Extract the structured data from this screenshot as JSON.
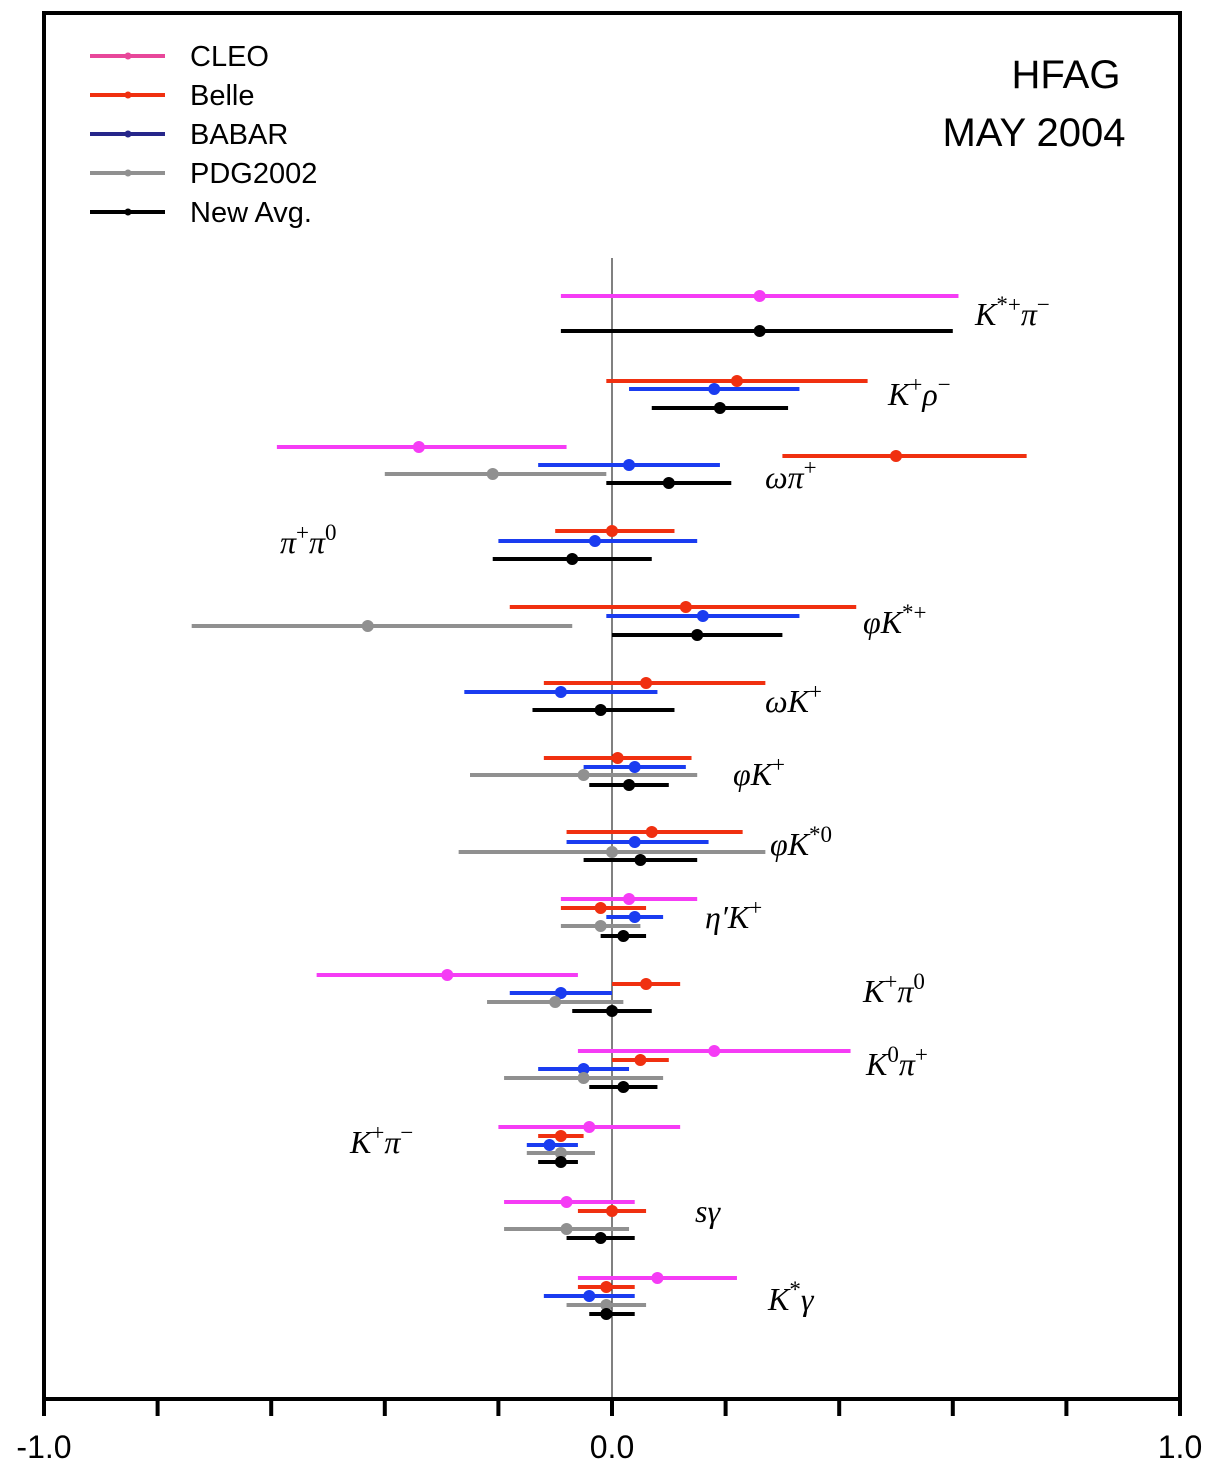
{
  "chart_data": {
    "type": "errorbar",
    "title": "",
    "watermark": [
      "HFAG",
      "MAY 2004"
    ],
    "xlabel": "",
    "ylabel": "",
    "xlim": [
      -1.0,
      1.0
    ],
    "x_tick_labels": [
      "-1.0",
      "0.0",
      "1.0"
    ],
    "colors": {
      "CLEO": "#f53cf5",
      "Belle": "#f03010",
      "BABAR": "#1a3cf0",
      "PDG2002": "#909090",
      "New Avg.": "#000000"
    },
    "legend": {
      "placement": "top-left",
      "entries": [
        {
          "name": "CLEO",
          "color": "#e8479a"
        },
        {
          "name": "Belle",
          "color": "#f03010"
        },
        {
          "name": "BABAR",
          "color": "#26268a"
        },
        {
          "name": "PDG2002",
          "color": "#909090"
        },
        {
          "name": "New Avg.",
          "color": "#000000"
        }
      ]
    },
    "groups": [
      {
        "label_main": "K",
        "label_sup": "*+",
        "label_main2": "π",
        "label_sup2": "−",
        "measurements": [
          {
            "experiment": "CLEO",
            "value": 0.26,
            "low": -0.09,
            "high": 0.61
          },
          {
            "experiment": "New Avg.",
            "value": 0.26,
            "low": -0.09,
            "high": 0.6
          }
        ]
      },
      {
        "label_main": "K",
        "label_sup": "+",
        "label_main2": "ρ",
        "label_sup2": "−",
        "measurements": [
          {
            "experiment": "Belle",
            "value": 0.22,
            "low": -0.01,
            "high": 0.45
          },
          {
            "experiment": "BABAR",
            "value": 0.18,
            "low": 0.03,
            "high": 0.33
          },
          {
            "experiment": "New Avg.",
            "value": 0.19,
            "low": 0.07,
            "high": 0.31
          }
        ]
      },
      {
        "label_main": "ωπ",
        "label_sup": "+",
        "label_main2": "",
        "label_sup2": "",
        "measurements": [
          {
            "experiment": "CLEO",
            "value": -0.34,
            "low": -0.59,
            "high": -0.08
          },
          {
            "experiment": "Belle",
            "value": 0.5,
            "low": 0.3,
            "high": 0.73
          },
          {
            "experiment": "BABAR",
            "value": 0.03,
            "low": -0.13,
            "high": 0.19
          },
          {
            "experiment": "PDG2002",
            "value": -0.21,
            "low": -0.4,
            "high": -0.01
          },
          {
            "experiment": "New Avg.",
            "value": 0.1,
            "low": -0.01,
            "high": 0.21
          }
        ]
      },
      {
        "label_main": "π",
        "label_sup": "+",
        "label_main2": "π",
        "label_sup2": "0",
        "measurements": [
          {
            "experiment": "Belle",
            "value": 0.0,
            "low": -0.1,
            "high": 0.11
          },
          {
            "experiment": "BABAR",
            "value": -0.03,
            "low": -0.2,
            "high": 0.15
          },
          {
            "experiment": "New Avg.",
            "value": -0.07,
            "low": -0.21,
            "high": 0.07
          }
        ]
      },
      {
        "label_main": "φK",
        "label_sup": "*+",
        "label_main2": "",
        "label_sup2": "",
        "measurements": [
          {
            "experiment": "Belle",
            "value": 0.13,
            "low": -0.18,
            "high": 0.43
          },
          {
            "experiment": "BABAR",
            "value": 0.16,
            "low": -0.01,
            "high": 0.33
          },
          {
            "experiment": "PDG2002",
            "value": -0.43,
            "low": -0.74,
            "high": -0.07
          },
          {
            "experiment": "New Avg.",
            "value": 0.15,
            "low": 0.0,
            "high": 0.3
          }
        ]
      },
      {
        "label_main": "ωK",
        "label_sup": "+",
        "label_main2": "",
        "label_sup2": "",
        "measurements": [
          {
            "experiment": "Belle",
            "value": 0.06,
            "low": -0.12,
            "high": 0.27
          },
          {
            "experiment": "BABAR",
            "value": -0.09,
            "low": -0.26,
            "high": 0.08
          },
          {
            "experiment": "New Avg.",
            "value": -0.02,
            "low": -0.14,
            "high": 0.11
          }
        ]
      },
      {
        "label_main": "φK",
        "label_sup": "+",
        "label_main2": "",
        "label_sup2": "",
        "measurements": [
          {
            "experiment": "Belle",
            "value": 0.01,
            "low": -0.12,
            "high": 0.14
          },
          {
            "experiment": "BABAR",
            "value": 0.04,
            "low": -0.05,
            "high": 0.13
          },
          {
            "experiment": "PDG2002",
            "value": -0.05,
            "low": -0.25,
            "high": 0.15
          },
          {
            "experiment": "New Avg.",
            "value": 0.03,
            "low": -0.04,
            "high": 0.1
          }
        ]
      },
      {
        "label_main": "φK",
        "label_sup": "*0",
        "label_main2": "",
        "label_sup2": "",
        "measurements": [
          {
            "experiment": "Belle",
            "value": 0.07,
            "low": -0.08,
            "high": 0.23
          },
          {
            "experiment": "BABAR",
            "value": 0.04,
            "low": -0.08,
            "high": 0.17
          },
          {
            "experiment": "PDG2002",
            "value": 0.0,
            "low": -0.27,
            "high": 0.27
          },
          {
            "experiment": "New Avg.",
            "value": 0.05,
            "low": -0.05,
            "high": 0.15
          }
        ]
      },
      {
        "label_main": "η′K",
        "label_sup": "+",
        "label_main2": "",
        "label_sup2": "",
        "measurements": [
          {
            "experiment": "CLEO",
            "value": 0.03,
            "low": -0.09,
            "high": 0.15
          },
          {
            "experiment": "Belle",
            "value": -0.02,
            "low": -0.09,
            "high": 0.06
          },
          {
            "experiment": "BABAR",
            "value": 0.04,
            "low": -0.01,
            "high": 0.09
          },
          {
            "experiment": "PDG2002",
            "value": -0.02,
            "low": -0.09,
            "high": 0.05
          },
          {
            "experiment": "New Avg.",
            "value": 0.02,
            "low": -0.02,
            "high": 0.06
          }
        ]
      },
      {
        "label_main": "K",
        "label_sup": "+",
        "label_main2": "π",
        "label_sup2": "0",
        "measurements": [
          {
            "experiment": "CLEO",
            "value": -0.29,
            "low": -0.52,
            "high": -0.06
          },
          {
            "experiment": "Belle",
            "value": 0.06,
            "low": 0.0,
            "high": 0.12
          },
          {
            "experiment": "BABAR",
            "value": -0.09,
            "low": -0.18,
            "high": 0.0
          },
          {
            "experiment": "PDG2002",
            "value": -0.1,
            "low": -0.22,
            "high": 0.02
          },
          {
            "experiment": "New Avg.",
            "value": 0.0,
            "low": -0.07,
            "high": 0.07
          }
        ]
      },
      {
        "label_main": "K",
        "label_sup": "0",
        "label_main2": "π",
        "label_sup2": "+",
        "measurements": [
          {
            "experiment": "CLEO",
            "value": 0.18,
            "low": -0.06,
            "high": 0.42
          },
          {
            "experiment": "Belle",
            "value": 0.05,
            "low": 0.0,
            "high": 0.1
          },
          {
            "experiment": "BABAR",
            "value": -0.05,
            "low": -0.13,
            "high": 0.03
          },
          {
            "experiment": "PDG2002",
            "value": -0.05,
            "low": -0.19,
            "high": 0.09
          },
          {
            "experiment": "New Avg.",
            "value": 0.02,
            "low": -0.04,
            "high": 0.08
          }
        ]
      },
      {
        "label_main": "K",
        "label_sup": "+",
        "label_main2": "π",
        "label_sup2": "−",
        "measurements": [
          {
            "experiment": "CLEO",
            "value": -0.04,
            "low": -0.2,
            "high": 0.12
          },
          {
            "experiment": "Belle",
            "value": -0.09,
            "low": -0.13,
            "high": -0.05
          },
          {
            "experiment": "BABAR",
            "value": -0.11,
            "low": -0.15,
            "high": -0.06
          },
          {
            "experiment": "PDG2002",
            "value": -0.09,
            "low": -0.15,
            "high": -0.03
          },
          {
            "experiment": "New Avg.",
            "value": -0.09,
            "low": -0.13,
            "high": -0.06
          }
        ]
      },
      {
        "label_main": "sγ",
        "label_sup": "",
        "label_main2": "",
        "label_sup2": "",
        "measurements": [
          {
            "experiment": "CLEO",
            "value": -0.08,
            "low": -0.19,
            "high": 0.04
          },
          {
            "experiment": "Belle",
            "value": 0.0,
            "low": -0.06,
            "high": 0.06
          },
          {
            "experiment": "PDG2002",
            "value": -0.08,
            "low": -0.19,
            "high": 0.03
          },
          {
            "experiment": "New Avg.",
            "value": -0.02,
            "low": -0.08,
            "high": 0.04
          }
        ]
      },
      {
        "label_main": "K",
        "label_sup": "*",
        "label_main2": "γ",
        "label_sup2": "",
        "measurements": [
          {
            "experiment": "CLEO",
            "value": 0.08,
            "low": -0.06,
            "high": 0.22
          },
          {
            "experiment": "Belle",
            "value": -0.01,
            "low": -0.06,
            "high": 0.04
          },
          {
            "experiment": "BABAR",
            "value": -0.04,
            "low": -0.12,
            "high": 0.04
          },
          {
            "experiment": "PDG2002",
            "value": -0.01,
            "low": -0.08,
            "high": 0.06
          },
          {
            "experiment": "New Avg.",
            "value": -0.01,
            "low": -0.04,
            "high": 0.04
          }
        ]
      }
    ]
  }
}
